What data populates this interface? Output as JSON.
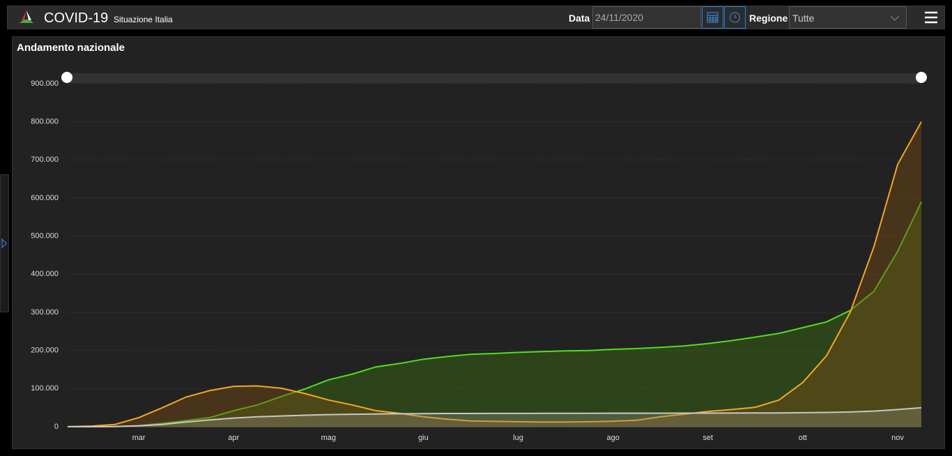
{
  "header": {
    "title": "COVID-19",
    "subtitle": "Situazione Italia",
    "date_label": "Data",
    "date_value": "24/11/2020",
    "region_label": "Regione",
    "region_value": "Tutte"
  },
  "panel_title": "Andamento nazionale",
  "chart_data": {
    "type": "area",
    "categories": [
      null,
      null,
      null,
      "mar",
      null,
      null,
      null,
      "apr",
      null,
      null,
      null,
      "mag",
      null,
      null,
      null,
      "giu",
      null,
      null,
      null,
      "lug",
      null,
      null,
      null,
      "ago",
      null,
      null,
      null,
      "set",
      null,
      null,
      null,
      "ott",
      null,
      null,
      null,
      "nov",
      null
    ],
    "series": [
      {
        "color": "#4fe01a",
        "fill": "rgba(60,110,20,0.45)",
        "values": [
          0,
          100,
          600,
          2700,
          9000,
          16000,
          24000,
          42000,
          57000,
          79000,
          99000,
          123000,
          138000,
          157000,
          166000,
          177000,
          184000,
          190000,
          192000,
          195000,
          197000,
          199000,
          200000,
          203000,
          205000,
          208000,
          212000,
          218000,
          226000,
          235000,
          245000,
          260000,
          275000,
          305000,
          355000,
          460000,
          590000
        ]
      },
      {
        "color": "#f5a623",
        "fill": "rgba(120,75,20,0.45)",
        "values": [
          200,
          1600,
          6000,
          24000,
          50000,
          78000,
          95000,
          106000,
          107000,
          101000,
          87000,
          70000,
          57000,
          42000,
          35000,
          26000,
          20000,
          15000,
          14000,
          13000,
          12500,
          12500,
          13000,
          14500,
          17000,
          26000,
          33000,
          40000,
          45000,
          51000,
          70000,
          116000,
          186000,
          300000,
          472000,
          688000,
          800000
        ]
      },
      {
        "color": "#c8c8c8",
        "fill": "rgba(140,140,120,0.35)",
        "values": [
          0,
          30,
          400,
          2200,
          6000,
          12400,
          17700,
          22700,
          25900,
          28200,
          30200,
          31900,
          32700,
          33400,
          34000,
          34400,
          34700,
          34800,
          34900,
          35000,
          35100,
          35150,
          35200,
          35400,
          35500,
          35500,
          35600,
          35700,
          35800,
          36000,
          36300,
          36800,
          37500,
          38600,
          41000,
          45000,
          50000
        ]
      }
    ],
    "ylim": [
      0,
      900000
    ],
    "yticks": [
      0,
      {
        "value": 100000,
        "label": "100.000"
      },
      {
        "value": 200000,
        "label": "200.000"
      },
      {
        "value": 300000,
        "label": "300.000"
      },
      {
        "value": 400000,
        "label": "400.000"
      },
      {
        "value": 500000,
        "label": "500.000"
      },
      {
        "value": 600000,
        "label": "600.000"
      },
      {
        "value": 700000,
        "label": "700.000"
      },
      {
        "value": 800000,
        "label": "800.000"
      },
      {
        "value": 900000,
        "label": "900.000"
      }
    ],
    "grid": true
  }
}
